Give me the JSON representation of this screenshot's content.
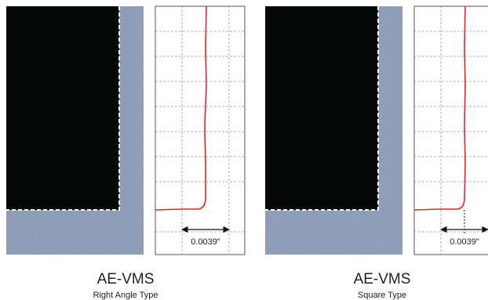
{
  "panels": [
    {
      "title": "AE-VMS",
      "subtitle": "Right Angle Type",
      "dimension": "0.0039\""
    },
    {
      "title": "AE-VMS",
      "subtitle": "Square Type",
      "dimension": "0.0039\""
    }
  ]
}
